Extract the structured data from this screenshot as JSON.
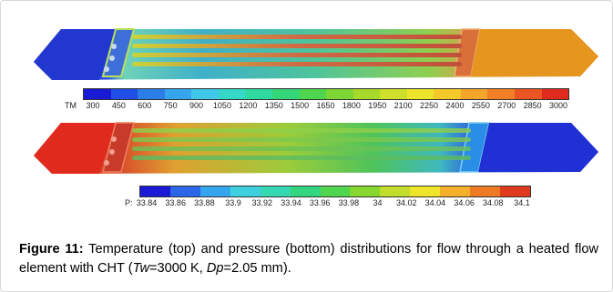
{
  "figure": {
    "temperature_scale": {
      "label": "TM",
      "ticks": [
        "300",
        "450",
        "600",
        "750",
        "900",
        "1050",
        "1200",
        "1350",
        "1500",
        "1650",
        "1800",
        "1950",
        "2100",
        "2250",
        "2400",
        "2550",
        "2700",
        "2850",
        "3000"
      ],
      "colors": [
        "#1a1ad6",
        "#1f4fe6",
        "#2b7de8",
        "#35a6ee",
        "#3fc8ea",
        "#35d8c8",
        "#2fd9a0",
        "#35d678",
        "#4fd54e",
        "#7dd634",
        "#a6d92a",
        "#cfe02a",
        "#eee52a",
        "#f5c92a",
        "#f5a52a",
        "#f27f26",
        "#ea5522",
        "#e02a1e"
      ]
    },
    "pressure_scale": {
      "label": "P:",
      "ticks": [
        "33.84",
        "33.86",
        "33.88",
        "33.9",
        "33.92",
        "33.94",
        "33.96",
        "33.98",
        "34",
        "34.02",
        "34.04",
        "34.06",
        "34.08",
        "34.1"
      ],
      "colors": [
        "#1a1ad6",
        "#2b66e6",
        "#35a6ee",
        "#3fd0e0",
        "#35d8b0",
        "#32d680",
        "#4fd54e",
        "#86d730",
        "#c2dd2a",
        "#eee52a",
        "#f5b02a",
        "#ee7a24",
        "#e03a1e"
      ]
    },
    "caption": {
      "label": "Figure 11:",
      "text_1": " Temperature (top) and pressure (bottom) distributions for flow through a heated flow element with CHT (",
      "var_tw": "Tw",
      "text_2": "=3000 K, ",
      "var_dp": "Dp",
      "text_3": "=2.05 mm)."
    }
  }
}
